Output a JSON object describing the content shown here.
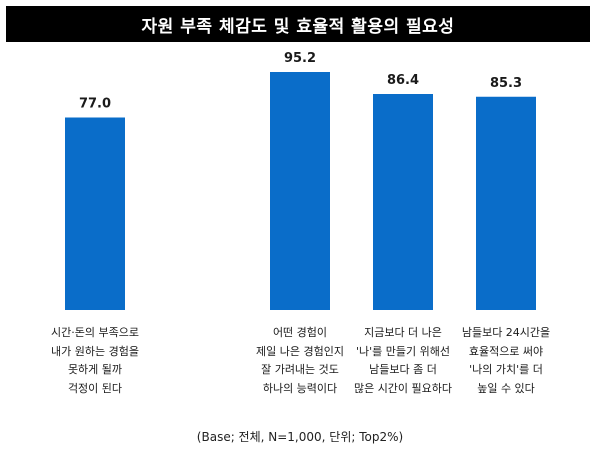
{
  "title": "자원 부족 체감도 및 효율적 활용의 필요성",
  "footnote": "(Base; 전체, N=1,000, 단위; Top2%)",
  "colors": {
    "bar": "#0a6dc9",
    "title_bg": "#000000",
    "title_text": "#ffffff"
  },
  "chart_data": {
    "type": "bar",
    "title": "자원 부족 체감도 및 효율적 활용의 필요성",
    "xlabel": "",
    "ylabel": "",
    "ylim": [
      0,
      100
    ],
    "grid": false,
    "legend": "none",
    "categories": [
      "시간·돈의 부족으로\n내가 원하는 경험을\n못하게 될까\n걱정이 된다",
      "어떤 경험이\n제일 나은 경험인지\n잘 가려내는 것도\n하나의 능력이다",
      "지금보다 더 나은\n'나'를 만들기 위해선\n남들보다 좀 더\n많은 시간이 필요하다",
      "남들보다 24시간을\n효율적으로 써야\n'나의 가치'를 더\n높일 수 있다"
    ],
    "values": [
      77.0,
      95.2,
      86.4,
      85.3
    ],
    "value_labels": [
      "77.0",
      "95.2",
      "86.4",
      "85.3"
    ]
  }
}
